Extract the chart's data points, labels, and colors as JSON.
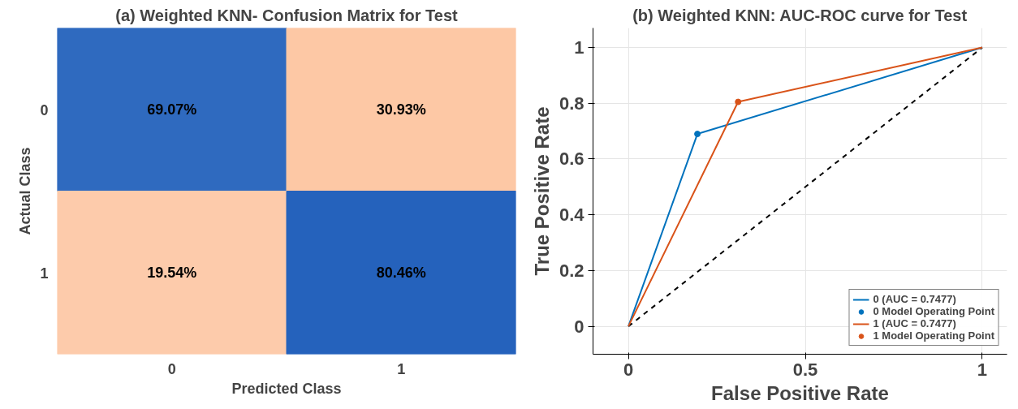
{
  "chart_data": [
    {
      "type": "heatmap",
      "title": "(a) Weighted KNN- Confusion Matrix for Test",
      "xlabel": "Predicted Class",
      "ylabel": "Actual Class",
      "categories": [
        "0",
        "1"
      ],
      "y_categories": [
        "0",
        "1"
      ],
      "cells": [
        [
          69.07,
          30.93
        ],
        [
          19.54,
          80.46
        ]
      ],
      "cell_labels": [
        [
          "69.07%",
          "30.93%"
        ],
        [
          "19.54%",
          "80.46%"
        ]
      ],
      "colors": [
        "#1255b6",
        "#fcb383"
      ]
    },
    {
      "type": "line",
      "title": "(b) Weighted KNN: AUC-ROC curve for Test",
      "xlabel": "False Positive Rate",
      "ylabel": "True Positive Rate",
      "xlim": [
        -0.1,
        1.07
      ],
      "ylim": [
        -0.1,
        1.07
      ],
      "xticks": [
        0,
        0.5,
        1
      ],
      "yticks": [
        0,
        0.2,
        0.4,
        0.6,
        0.8,
        1
      ],
      "grid": true,
      "legend": "bottom right",
      "series": [
        {
          "type": "line",
          "x": [
            0,
            1
          ],
          "values": [
            0,
            1
          ],
          "color": "#000000",
          "line_style": "dashed",
          "marker": "none"
        },
        {
          "type": "line",
          "name": "0 (AUC = 0.7477)",
          "x": [
            0,
            0.195,
            1
          ],
          "values": [
            0,
            0.69,
            1
          ],
          "color": "#0072bd",
          "line_style": "solid",
          "marker": "none"
        },
        {
          "type": "scatter",
          "name": "0 Model Operating Point",
          "x": [
            0.195
          ],
          "values": [
            0.69
          ],
          "color": "#0072bd",
          "marker": "circle"
        },
        {
          "type": "line",
          "name": "1 (AUC = 0.7477)",
          "x": [
            0,
            0.31,
            1
          ],
          "values": [
            0,
            0.805,
            1
          ],
          "color": "#d95319",
          "line_style": "solid",
          "marker": "none"
        },
        {
          "type": "scatter",
          "name": "1 Model Operating Point",
          "x": [
            0.31
          ],
          "values": [
            0.805
          ],
          "color": "#d95319",
          "marker": "circle"
        }
      ]
    }
  ]
}
